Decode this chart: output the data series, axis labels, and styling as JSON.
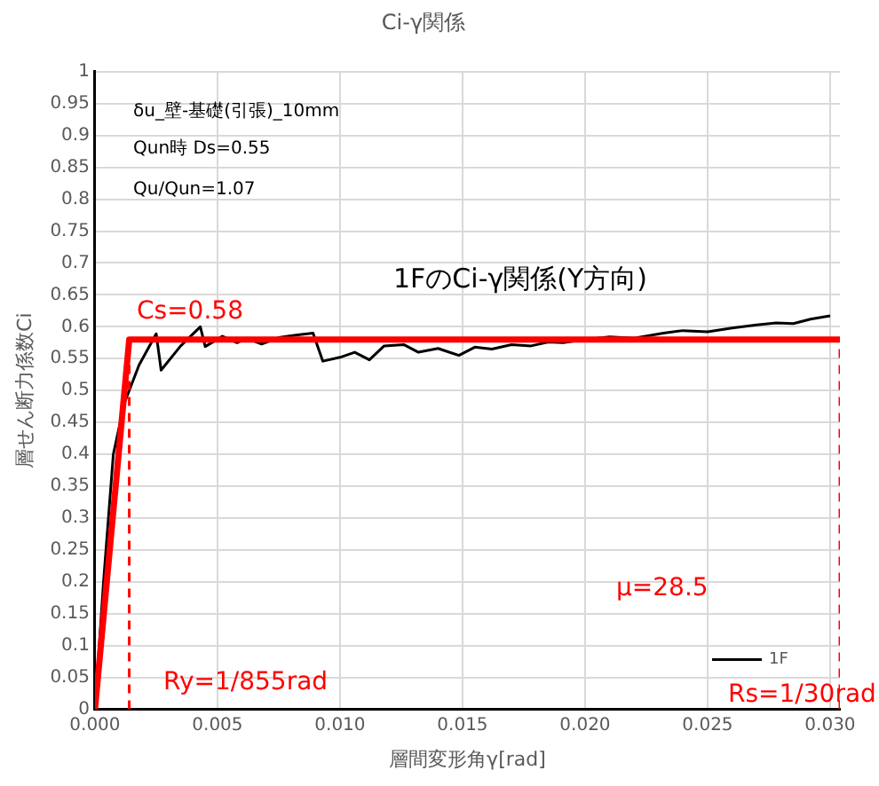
{
  "chart_data": {
    "type": "line",
    "title": "Ci-γ関係",
    "xlabel": "層間変形角γ[rad]",
    "ylabel": "層せん断力係数Ci",
    "xlim": [
      0,
      0.0304
    ],
    "xticks": [
      {
        "value": 0,
        "label": "0.000"
      },
      {
        "value": 0.005,
        "label": "0.005"
      },
      {
        "value": 0.01,
        "label": "0.010"
      },
      {
        "value": 0.015,
        "label": "0.015"
      },
      {
        "value": 0.02,
        "label": "0.020"
      },
      {
        "value": 0.025,
        "label": "0.025"
      },
      {
        "value": 0.03,
        "label": "0.030"
      }
    ],
    "ylim": [
      0,
      1
    ],
    "yticks": [
      0,
      0.05,
      0.1,
      0.15,
      0.2,
      0.25,
      0.3,
      0.35,
      0.4,
      0.45,
      0.5,
      0.55,
      0.6,
      0.65,
      0.7,
      0.75,
      0.8,
      0.85,
      0.9,
      0.95,
      1
    ],
    "grid": true,
    "legend": "bottom right",
    "marker": "none",
    "series": [
      {
        "name": "1F",
        "color": "#000000",
        "x": [
          0,
          0.00035,
          0.00075,
          0.0012,
          0.0018,
          0.0025,
          0.0027,
          0.0035,
          0.0043,
          0.0045,
          0.0052,
          0.0058,
          0.0062,
          0.0068,
          0.0075,
          0.0082,
          0.0089,
          0.0093,
          0.01,
          0.0106,
          0.0112,
          0.0118,
          0.0126,
          0.0132,
          0.014,
          0.01485,
          0.0155,
          0.0162,
          0.017,
          0.0178,
          0.0185,
          0.0191,
          0.02,
          0.021,
          0.022,
          0.0232,
          0.024,
          0.025,
          0.026,
          0.027,
          0.0278,
          0.0285,
          0.0292,
          0.03
        ],
        "values": [
          0,
          0.2,
          0.4,
          0.48,
          0.54,
          0.589,
          0.532,
          0.57,
          0.6,
          0.569,
          0.585,
          0.575,
          0.582,
          0.573,
          0.583,
          0.587,
          0.59,
          0.546,
          0.552,
          0.56,
          0.548,
          0.57,
          0.572,
          0.56,
          0.566,
          0.555,
          0.568,
          0.565,
          0.572,
          0.57,
          0.576,
          0.575,
          0.58,
          0.584,
          0.582,
          0.59,
          0.594,
          0.592,
          0.598,
          0.603,
          0.606,
          0.605,
          0.612,
          0.617
        ]
      },
      {
        "color": "#ff0000",
        "x": [
          0,
          0.0014,
          0.0304
        ],
        "values": [
          0,
          0.58,
          0.58
        ]
      },
      {
        "color": "#ff0000",
        "line_style": "dashed",
        "x": [
          0.0014,
          0.0014
        ],
        "values": [
          0,
          0.58
        ]
      },
      {
        "color": "#ff0000",
        "line_style": "dashed",
        "x": [
          0.0304,
          0.0304
        ],
        "values": [
          0,
          0.58
        ]
      }
    ],
    "annotations": [
      "δu_壁-基礎(引張)_10mm",
      "Qun時 Ds=0.55",
      "Qu/Qun=1.07",
      "1FのCi-γ関係(Y方向)",
      "Cs=0.58",
      "Ry=1/855rad",
      "μ=28.5",
      "Rs=1/30rad"
    ]
  }
}
